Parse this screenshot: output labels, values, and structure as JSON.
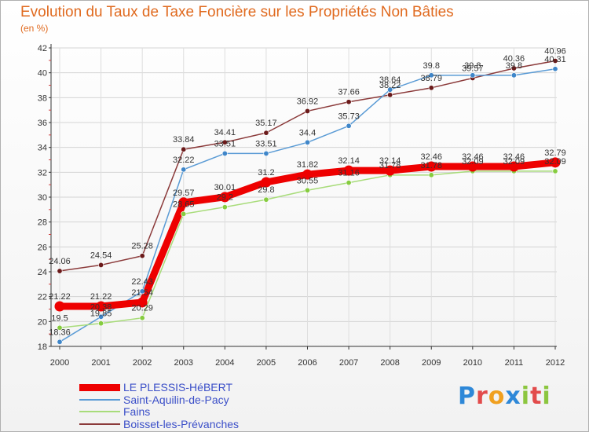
{
  "chart_data": {
    "type": "line",
    "title": "Evolution du Taux de Taxe Foncière sur les Propriétés Non Bâties",
    "unit_label": "(en %)",
    "x": [
      "2000",
      "2001",
      "2002",
      "2003",
      "2004",
      "2005",
      "2006",
      "2007",
      "2008",
      "2009",
      "2010",
      "2011",
      "2012"
    ],
    "ylim": [
      18,
      42
    ],
    "yticks": [
      18,
      20,
      22,
      24,
      26,
      28,
      30,
      32,
      34,
      36,
      38,
      40,
      42
    ],
    "series": [
      {
        "name": "LE PLESSIS-HéBERT",
        "color": "#ee0000",
        "width": 9,
        "values": [
          21.22,
          21.22,
          21.54,
          29.57,
          30.01,
          31.2,
          31.82,
          32.14,
          32.14,
          32.46,
          32.46,
          32.46,
          32.79
        ],
        "labels": [
          "21.22",
          "21.22",
          "21.54",
          "29.57",
          "30.01",
          "31.2",
          "31.82",
          "32.14",
          "32.14",
          "32.46",
          "32.46",
          "32.46",
          "32.79"
        ]
      },
      {
        "name": "Saint-Aquilin-de-Pacy",
        "color": "#5a9bd5",
        "marker": "#3f86c9",
        "width": 1.5,
        "values": [
          18.36,
          20.38,
          22.43,
          32.22,
          33.51,
          33.51,
          34.4,
          35.73,
          38.64,
          39.8,
          39.8,
          39.8,
          40.31
        ],
        "labels": [
          "18.36",
          "20.38",
          "22.43",
          "32.22",
          "33.51",
          "33.51",
          "34.4",
          "35.73",
          "38.64",
          "39.8",
          "39.8",
          "39.8",
          "40.31"
        ]
      },
      {
        "name": "Fains",
        "color": "#a8dc7a",
        "marker": "#86cc3f",
        "width": 1.5,
        "values": [
          19.5,
          19.85,
          20.29,
          28.65,
          29.2,
          29.8,
          30.55,
          31.16,
          31.78,
          31.78,
          32.09,
          32.09,
          32.09
        ],
        "labels": [
          "19.5",
          "19.85",
          "20.29",
          "28.65",
          "29.2",
          "29.8",
          "30.55",
          "31.16",
          "31.78",
          "31.78",
          "32.09",
          "32.09",
          "32.09"
        ]
      },
      {
        "name": "Boisset-les-Prévanches",
        "color": "#8b3a3a",
        "marker": "#6b1a1a",
        "width": 1.5,
        "values": [
          24.06,
          24.54,
          25.28,
          33.84,
          34.41,
          35.17,
          36.92,
          37.66,
          38.22,
          38.79,
          39.57,
          40.36,
          40.96
        ],
        "labels": [
          "24.06",
          "24.54",
          "25.28",
          "33.84",
          "34.41",
          "35.17",
          "36.92",
          "37.66",
          "38.22",
          "38.79",
          "39.57",
          "40.36",
          "40.96"
        ]
      }
    ]
  },
  "logo_text": "Proxiti",
  "logo_colors": [
    "#2e88d8",
    "#e24b4b",
    "#f0a020",
    "#2e88d8",
    "#8cc63f",
    "#e24b4b",
    "#8cc63f"
  ]
}
